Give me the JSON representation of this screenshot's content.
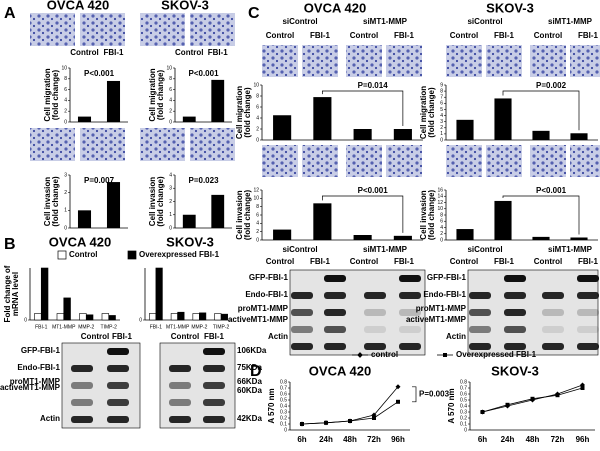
{
  "panels": {
    "a": "A",
    "b": "B",
    "c": "C",
    "d": "D"
  },
  "panel_b_blot": {
    "columns": [
      "Control",
      "FBI-1"
    ],
    "rows": [
      "GFP-FBI-1",
      "Endo-FBI-1",
      "proMT1-MMP",
      "activeMT1-MMP",
      "Actin"
    ],
    "sizes": [
      "106KDa",
      "75KDa",
      "66KDa",
      "60KDa",
      "42KDa"
    ]
  },
  "panel_c": {
    "titles": [
      "OVCA 420",
      "SKOV-3"
    ],
    "groups": [
      "siControl",
      "siMT1-MMP"
    ],
    "conditions": [
      "Control",
      "FBI-1",
      "Control",
      "FBI-1"
    ],
    "rows": [
      "GFP-FBI-1",
      "Endo-FBI-1",
      "proMT1-MMP",
      "activeMT1-MMP",
      "Actin"
    ]
  },
  "chart_data": [
    {
      "type": "bar",
      "title": "OVCA 420",
      "categories": [
        "Control",
        "FBI-1"
      ],
      "values": [
        1,
        7.6
      ],
      "color": "#000000",
      "ylabel": [
        "Cell migration",
        "(fold change)"
      ],
      "ylim": [
        0,
        10
      ],
      "yticks": [
        0,
        2,
        4,
        6,
        8,
        10
      ],
      "annotation": "P<0.001"
    },
    {
      "type": "bar",
      "title": "SKOV-3",
      "categories": [
        "Control",
        "FBI-1"
      ],
      "values": [
        1,
        7.8
      ],
      "color": "#000000",
      "ylabel": [
        "Cell migration",
        "(fold change)"
      ],
      "ylim": [
        0,
        10
      ],
      "yticks": [
        0,
        2,
        4,
        6,
        8,
        10
      ],
      "annotation": "P<0.001"
    },
    {
      "type": "bar",
      "values": [
        1,
        2.6
      ],
      "color": "#000000",
      "ylabel": [
        "Cell invasion",
        "(fold change)"
      ],
      "ylim": [
        0,
        3
      ],
      "yticks": [
        0,
        1,
        2,
        3
      ],
      "annotation": "P=0.007"
    },
    {
      "type": "bar",
      "values": [
        1,
        2.5
      ],
      "color": "#000000",
      "ylabel": [
        "Cell invasion",
        "(fold change)"
      ],
      "ylim": [
        0,
        4
      ],
      "yticks": [
        0,
        1,
        2,
        3,
        4
      ],
      "annotation": "P=0.023"
    },
    {
      "type": "bar",
      "values": [
        4.5,
        7.8,
        2,
        2
      ],
      "color": "#000000",
      "ylabel": [
        "Cell migration",
        "(fold change)"
      ],
      "ylim": [
        0,
        10
      ],
      "yticks": [
        0,
        2,
        4,
        6,
        8,
        10
      ],
      "annotation": "P=0.014"
    },
    {
      "type": "bar",
      "values": [
        3.3,
        6.8,
        1.5,
        1.1
      ],
      "color": "#000000",
      "ylabel": [
        "Cell migration",
        "(fold change)"
      ],
      "ylim": [
        0,
        9
      ],
      "yticks": [
        0,
        1,
        2,
        3,
        4,
        5,
        6,
        7,
        8,
        9
      ],
      "annotation": "P=0.002"
    },
    {
      "type": "bar",
      "values": [
        2.5,
        8.8,
        1.2,
        1
      ],
      "color": "#000000",
      "ylabel": [
        "Cell invasion",
        "(fold change)"
      ],
      "ylim": [
        0,
        12
      ],
      "yticks": [
        0,
        2,
        4,
        6,
        8,
        10,
        12
      ],
      "annotation": "P<0.001"
    },
    {
      "type": "bar",
      "values": [
        3.5,
        12.5,
        1,
        0.8
      ],
      "color": "#000000",
      "ylabel": [
        "Cell invasion",
        "(fold change)"
      ],
      "ylim": [
        0,
        16
      ],
      "yticks": [
        0,
        2,
        4,
        6,
        8,
        10,
        12,
        14,
        16
      ],
      "annotation": "P<0.001"
    },
    {
      "type": "bar",
      "title": "OVCA 420",
      "categories": [
        "FBI-1",
        "MT1-MMP",
        "MMP-2",
        "TIMP-2"
      ],
      "series": [
        {
          "name": "Control",
          "color": "#ffffff",
          "values": [
            1,
            1,
            1,
            1
          ]
        },
        {
          "name": "Overexpressed FBI-1",
          "color": "#000000",
          "values": [
            8,
            3.4,
            0.8,
            0.7
          ]
        }
      ],
      "ylabel": [
        "Fold change of",
        "mRNA level"
      ],
      "ylim": [
        0,
        8
      ],
      "yticks": [
        0
      ]
    },
    {
      "type": "bar",
      "title": "SKOV-3",
      "categories": [
        "FBI-1",
        "MT1-MMP",
        "MMP-2",
        "TIMP-2"
      ],
      "series": [
        {
          "name": "Control",
          "color": "#ffffff",
          "values": [
            1,
            1,
            1,
            1
          ]
        },
        {
          "name": "Overexpressed FBI-1",
          "color": "#000000",
          "values": [
            8,
            1.2,
            1.1,
            0.9
          ]
        }
      ],
      "ylim": [
        0,
        8
      ],
      "yticks": [
        0
      ]
    },
    {
      "type": "line",
      "title": "OVCA 420",
      "x": [
        "6h",
        "24h",
        "48h",
        "72h",
        "96h"
      ],
      "series": [
        {
          "name": "control",
          "color": "#000000",
          "values": [
            0.1,
            0.12,
            0.15,
            0.25,
            0.72
          ]
        },
        {
          "name": "Overexpressed FBI-1",
          "color": "#000000",
          "values": [
            0.1,
            0.12,
            0.15,
            0.2,
            0.47
          ]
        }
      ],
      "ylabel": [
        "A 570 nm"
      ],
      "ylim": [
        0,
        0.8
      ],
      "yticks": [
        0,
        0.1,
        0.2,
        0.3,
        0.4,
        0.5,
        0.6,
        0.7,
        0.8
      ],
      "annotation": "P=0.003"
    },
    {
      "type": "line",
      "title": "SKOV-3",
      "x": [
        "6h",
        "24h",
        "48h",
        "72h",
        "96h"
      ],
      "series": [
        {
          "name": "control",
          "color": "#000000",
          "values": [
            0.3,
            0.4,
            0.5,
            0.6,
            0.75
          ]
        },
        {
          "name": "Overexpressed FBI-1",
          "color": "#000000",
          "values": [
            0.3,
            0.42,
            0.52,
            0.58,
            0.7
          ]
        }
      ],
      "ylabel": [
        "A 570 nm"
      ],
      "ylim": [
        0,
        0.8
      ],
      "yticks": [
        0,
        0.1,
        0.2,
        0.3,
        0.4,
        0.5,
        0.6,
        0.7,
        0.8
      ]
    }
  ]
}
